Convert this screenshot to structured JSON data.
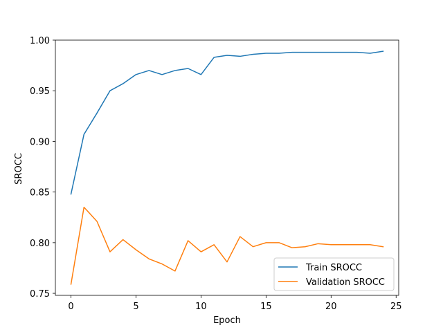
{
  "chart_data": {
    "type": "line",
    "title": "",
    "xlabel": "Epoch",
    "ylabel": "SROCC",
    "xlim": [
      -1.2,
      25.2
    ],
    "ylim": [
      0.748,
      1.0
    ],
    "xticks": [
      0,
      5,
      10,
      15,
      20,
      25
    ],
    "yticks": [
      0.75,
      0.8,
      0.85,
      0.9,
      0.95,
      1.0
    ],
    "xtick_labels": [
      "0",
      "5",
      "10",
      "15",
      "20",
      "25"
    ],
    "ytick_labels": [
      "0.75",
      "0.80",
      "0.85",
      "0.90",
      "0.95",
      "1.00"
    ],
    "grid": false,
    "legend_position": "lower-right",
    "x": [
      0,
      1,
      2,
      3,
      4,
      5,
      6,
      7,
      8,
      9,
      10,
      11,
      12,
      13,
      14,
      15,
      16,
      17,
      18,
      19,
      20,
      21,
      22,
      23,
      24
    ],
    "series": [
      {
        "name": "Train SROCC",
        "color": "#1f77b4",
        "values": [
          0.848,
          0.907,
          0.928,
          0.95,
          0.957,
          0.966,
          0.97,
          0.966,
          0.97,
          0.972,
          0.966,
          0.983,
          0.985,
          0.984,
          0.986,
          0.987,
          0.987,
          0.988,
          0.988,
          0.988,
          0.988,
          0.988,
          0.988,
          0.987,
          0.989
        ]
      },
      {
        "name": "Validation SROCC",
        "color": "#ff7f0e",
        "values": [
          0.759,
          0.835,
          0.821,
          0.791,
          0.803,
          0.793,
          0.784,
          0.779,
          0.772,
          0.802,
          0.791,
          0.798,
          0.781,
          0.806,
          0.796,
          0.8,
          0.8,
          0.795,
          0.796,
          0.799,
          0.798,
          0.798,
          0.798,
          0.798,
          0.796
        ]
      }
    ]
  }
}
